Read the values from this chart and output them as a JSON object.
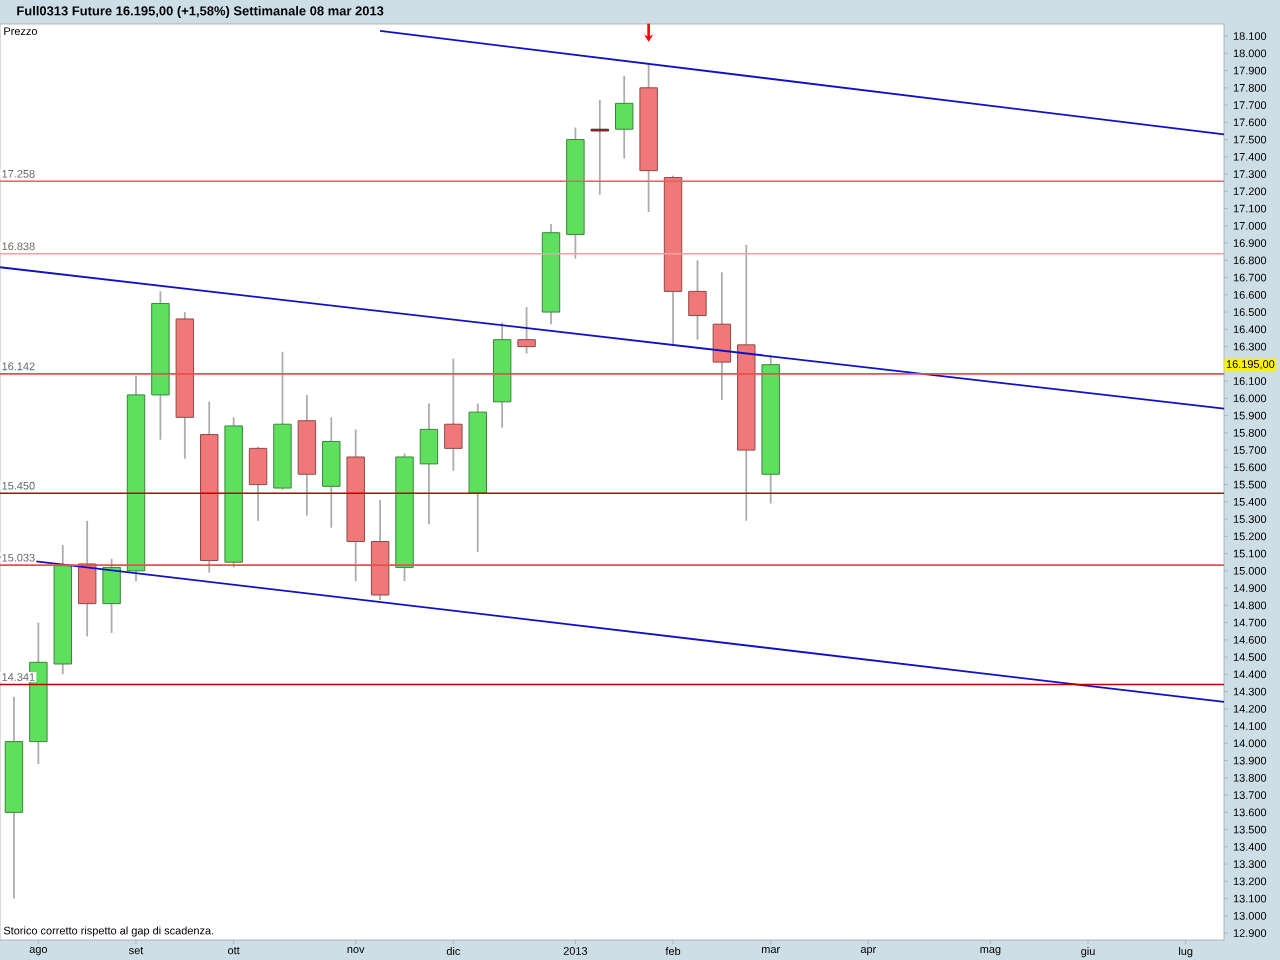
{
  "chart_data": {
    "type": "candlestick",
    "title": "Full0313 Future   16.195,00 (+1,58%)   Settimanale  08 mar 2013",
    "ylabel": "Prezzo",
    "x": [
      "2012-07-30",
      "2012-08-06",
      "2012-08-13",
      "2012-08-20",
      "2012-08-27",
      "2012-09-03",
      "2012-09-10",
      "2012-09-17",
      "2012-09-24",
      "2012-10-01",
      "2012-10-08",
      "2012-10-15",
      "2012-10-22",
      "2012-10-29",
      "2012-11-05",
      "2012-11-12",
      "2012-11-19",
      "2012-11-26",
      "2012-12-03",
      "2012-12-10",
      "2012-12-17",
      "2012-12-24",
      "2012-12-31",
      "2013-01-07",
      "2013-01-14",
      "2013-01-21",
      "2013-01-28",
      "2013-02-04",
      "2013-02-11",
      "2013-02-18",
      "2013-02-25",
      "2013-03-04"
    ],
    "ohlc": [
      [
        13600,
        14270,
        13100,
        14010
      ],
      [
        14010,
        14700,
        13880,
        14470
      ],
      [
        14460,
        15150,
        14400,
        15030
      ],
      [
        15040,
        15290,
        14620,
        14810
      ],
      [
        14810,
        15070,
        14640,
        15020
      ],
      [
        15000,
        16130,
        14940,
        16020
      ],
      [
        16020,
        16620,
        15760,
        16550
      ],
      [
        16460,
        16500,
        15650,
        15890
      ],
      [
        15790,
        15980,
        14990,
        15060
      ],
      [
        15050,
        15890,
        15020,
        15840
      ],
      [
        15710,
        15720,
        15290,
        15500
      ],
      [
        15480,
        16270,
        15470,
        15850
      ],
      [
        15870,
        16020,
        15320,
        15560
      ],
      [
        15490,
        15890,
        15250,
        15750
      ],
      [
        15660,
        15820,
        14940,
        15170
      ],
      [
        15170,
        15410,
        14830,
        14860
      ],
      [
        15020,
        15680,
        14940,
        15660
      ],
      [
        15620,
        15970,
        15270,
        15820
      ],
      [
        15850,
        16230,
        15580,
        15710
      ],
      [
        15450,
        15970,
        15110,
        15920
      ],
      [
        15980,
        16440,
        15830,
        16340
      ],
      [
        16340,
        16530,
        16260,
        16300
      ],
      [
        16500,
        17010,
        16430,
        16960
      ],
      [
        16950,
        17570,
        16810,
        17500
      ],
      [
        17560,
        17730,
        17180,
        17550
      ],
      [
        17560,
        17870,
        17390,
        17710
      ],
      [
        17800,
        17940,
        17080,
        17320
      ],
      [
        17280,
        17290,
        16310,
        16620
      ],
      [
        16620,
        16800,
        16340,
        16480
      ],
      [
        16430,
        16730,
        15990,
        16210
      ],
      [
        16310,
        16890,
        15290,
        15700
      ],
      [
        15560,
        16250,
        15390,
        16195
      ]
    ],
    "colors": [
      "#5ee05e",
      "#5ee05e",
      "#5ee05e",
      "#f07878",
      "#5ee05e",
      "#5ee05e",
      "#5ee05e",
      "#f07878",
      "#f07878",
      "#5ee05e",
      "#f07878",
      "#5ee05e",
      "#f07878",
      "#5ee05e",
      "#f07878",
      "#f07878",
      "#5ee05e",
      "#5ee05e",
      "#f07878",
      "#5ee05e",
      "#5ee05e",
      "#f07878",
      "#5ee05e",
      "#5ee05e",
      "#a03030",
      "#5ee05e",
      "#f07878",
      "#f07878",
      "#f07878",
      "#f07878",
      "#f07878",
      "#5ee05e"
    ],
    "series": [
      {
        "type": "line",
        "color": "#1010c8",
        "x": [
          "2012-11-12",
          "2013-07-12"
        ],
        "values": [
          18130,
          17530
        ]
      },
      {
        "type": "line",
        "color": "#1010c8",
        "x": [
          "2012-07-26",
          "2013-07-12"
        ],
        "values": [
          16760,
          15940
        ]
      },
      {
        "type": "line",
        "color": "#1010c8",
        "x": [
          "2012-07-26",
          "2013-07-12"
        ],
        "values": [
          15080,
          14240
        ]
      }
    ],
    "ref_lines": [
      {
        "axis": "y",
        "value": 17258,
        "label": "17.258",
        "color": "#e86060"
      },
      {
        "axis": "y",
        "value": 16838,
        "label": "16.838",
        "color": "#f4a0a0"
      },
      {
        "axis": "y",
        "value": 16142,
        "label": "16.142",
        "color": "#e85050"
      },
      {
        "axis": "y",
        "value": 15450,
        "label": "15.450",
        "color": "#c00000"
      },
      {
        "axis": "y",
        "value": 15033,
        "label": "15.033",
        "color": "#e85050"
      },
      {
        "axis": "y",
        "value": 14341,
        "label": "14.341",
        "color": "#c00000"
      }
    ],
    "annotations": [
      "16.195,00",
      "Storico corretto rispetto al gap di scadenza."
    ],
    "xlim": [
      "2012-07-26",
      "2013-07-12"
    ],
    "xticks": [
      {
        "value": "2012-08-06",
        "label": "ago"
      },
      {
        "value": "2012-09-03",
        "label": "set"
      },
      {
        "value": "2012-10-01",
        "label": "ott"
      },
      {
        "value": "2012-11-05",
        "label": "nov"
      },
      {
        "value": "2012-12-03",
        "label": "dic"
      },
      {
        "value": "2013-01-07",
        "label": "2013"
      },
      {
        "value": "2013-02-04",
        "label": "feb"
      },
      {
        "value": "2013-03-04",
        "label": "mar"
      },
      {
        "value": "2013-04-01",
        "label": "apr"
      },
      {
        "value": "2013-05-06",
        "label": "mag"
      },
      {
        "value": "2013-06-03",
        "label": "giu"
      },
      {
        "value": "2013-07-01",
        "label": "lug"
      }
    ],
    "ylim": [
      12860,
      18170
    ],
    "yticks": [
      {
        "value": 12900,
        "label": "12.900"
      },
      {
        "value": 13000,
        "label": "13.000"
      },
      {
        "value": 13100,
        "label": "13.100"
      },
      {
        "value": 13200,
        "label": "13.200"
      },
      {
        "value": 13300,
        "label": "13.300"
      },
      {
        "value": 13400,
        "label": "13.400"
      },
      {
        "value": 13500,
        "label": "13.500"
      },
      {
        "value": 13600,
        "label": "13.600"
      },
      {
        "value": 13700,
        "label": "13.700"
      },
      {
        "value": 13800,
        "label": "13.800"
      },
      {
        "value": 13900,
        "label": "13.900"
      },
      {
        "value": 14000,
        "label": "14.000"
      },
      {
        "value": 14100,
        "label": "14.100"
      },
      {
        "value": 14200,
        "label": "14.200"
      },
      {
        "value": 14300,
        "label": "14.300"
      },
      {
        "value": 14400,
        "label": "14.400"
      },
      {
        "value": 14500,
        "label": "14.500"
      },
      {
        "value": 14600,
        "label": "14.600"
      },
      {
        "value": 14700,
        "label": "14.700"
      },
      {
        "value": 14800,
        "label": "14.800"
      },
      {
        "value": 14900,
        "label": "14.900"
      },
      {
        "value": 15000,
        "label": "15.000"
      },
      {
        "value": 15100,
        "label": "15.100"
      },
      {
        "value": 15200,
        "label": "15.200"
      },
      {
        "value": 15300,
        "label": "15.300"
      },
      {
        "value": 15400,
        "label": "15.400"
      },
      {
        "value": 15500,
        "label": "15.500"
      },
      {
        "value": 15600,
        "label": "15.600"
      },
      {
        "value": 15700,
        "label": "15.700"
      },
      {
        "value": 15800,
        "label": "15.800"
      },
      {
        "value": 15900,
        "label": "15.900"
      },
      {
        "value": 16000,
        "label": "16.000"
      },
      {
        "value": 16100,
        "label": "16.100"
      },
      {
        "value": 16300,
        "label": "16.300"
      },
      {
        "value": 16400,
        "label": "16.400"
      },
      {
        "value": 16500,
        "label": "16.500"
      },
      {
        "value": 16600,
        "label": "16.600"
      },
      {
        "value": 16700,
        "label": "16.700"
      },
      {
        "value": 16800,
        "label": "16.800"
      },
      {
        "value": 16900,
        "label": "16.900"
      },
      {
        "value": 17000,
        "label": "17.000"
      },
      {
        "value": 17100,
        "label": "17.100"
      },
      {
        "value": 17200,
        "label": "17.200"
      },
      {
        "value": 17300,
        "label": "17.300"
      },
      {
        "value": 17400,
        "label": "17.400"
      },
      {
        "value": 17500,
        "label": "17.500"
      },
      {
        "value": 17600,
        "label": "17.600"
      },
      {
        "value": 17700,
        "label": "17.700"
      },
      {
        "value": 17800,
        "label": "17.800"
      },
      {
        "value": 17900,
        "label": "17.900"
      },
      {
        "value": 18000,
        "label": "18.000"
      },
      {
        "value": 18100,
        "label": "18.100"
      }
    ]
  }
}
